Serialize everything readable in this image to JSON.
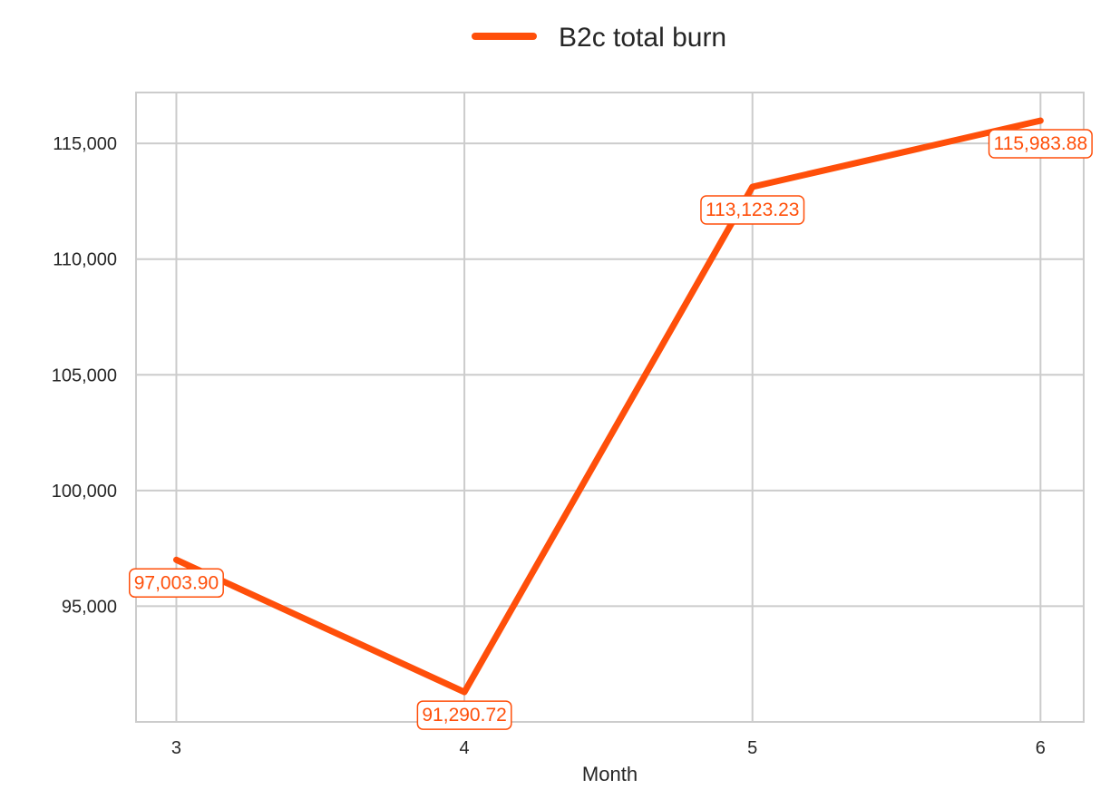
{
  "chart_data": {
    "type": "line",
    "title": "",
    "xlabel": "Month",
    "ylabel": "",
    "x": [
      3,
      4,
      5,
      6
    ],
    "xticks": [
      "3",
      "4",
      "5",
      "6"
    ],
    "yticks": [
      95000,
      100000,
      105000,
      110000,
      115000
    ],
    "ytick_labels": [
      "95,000",
      "100,000",
      "105,000",
      "110,000",
      "115,000"
    ],
    "ylim": [
      90000,
      117200
    ],
    "xlim": [
      2.86,
      6.15
    ],
    "grid": true,
    "legend_position": "top-center",
    "series": [
      {
        "name": "B2c total burn",
        "color": "#ff4f0a",
        "values": [
          97003.9,
          91290.72,
          113123.23,
          115983.88
        ],
        "labels": [
          "97,003.90",
          "91,290.72",
          "113,123.23",
          "115,983.88"
        ]
      }
    ]
  }
}
